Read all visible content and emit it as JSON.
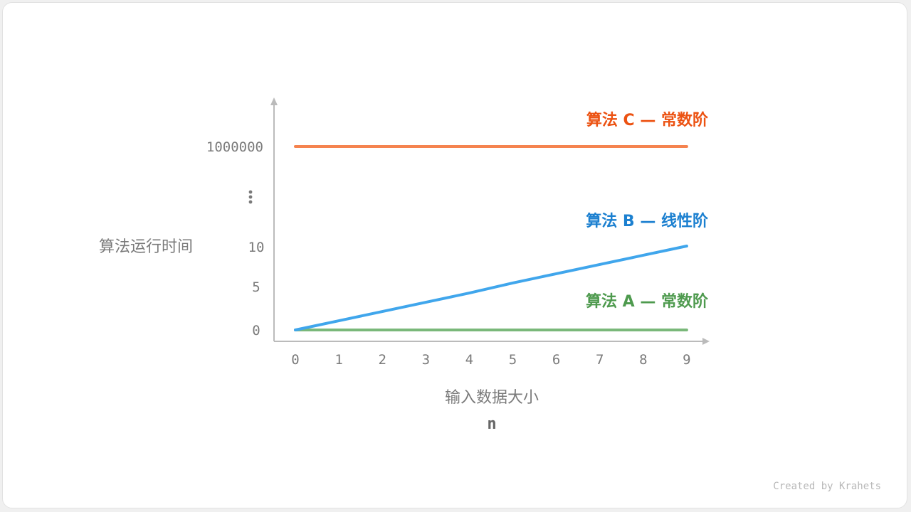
{
  "chart_data": {
    "type": "line",
    "xlabel": "输入数据大小",
    "xlabel_sub": "n",
    "ylabel": "算法运行时间",
    "x": [
      0,
      1,
      2,
      3,
      4,
      5,
      6,
      7,
      8,
      9
    ],
    "x_ticks": [
      "0",
      "1",
      "2",
      "3",
      "4",
      "5",
      "6",
      "7",
      "8",
      "9"
    ],
    "y_ticks": [
      "0",
      "5",
      "10",
      "⋮",
      "1000000"
    ],
    "y_scale": "broken",
    "grid": false,
    "series": [
      {
        "name": "算法 A — 常数阶",
        "color": "#7ab87a",
        "label_color": "#4e9a4e",
        "values": [
          0,
          0,
          0,
          0,
          0,
          0,
          0,
          0,
          0,
          0
        ]
      },
      {
        "name": "算法 B — 线性阶",
        "color": "#40a6ec",
        "label_color": "#1c80d0",
        "values": [
          0,
          1.1,
          2.2,
          3.3,
          4.4,
          5.6,
          6.7,
          7.8,
          8.9,
          10
        ]
      },
      {
        "name": "算法 C — 常数阶",
        "color": "#f5834f",
        "label_color": "#ec5212",
        "values": [
          1000000,
          1000000,
          1000000,
          1000000,
          1000000,
          1000000,
          1000000,
          1000000,
          1000000,
          1000000
        ]
      }
    ]
  },
  "credit": "Created by Krahets"
}
